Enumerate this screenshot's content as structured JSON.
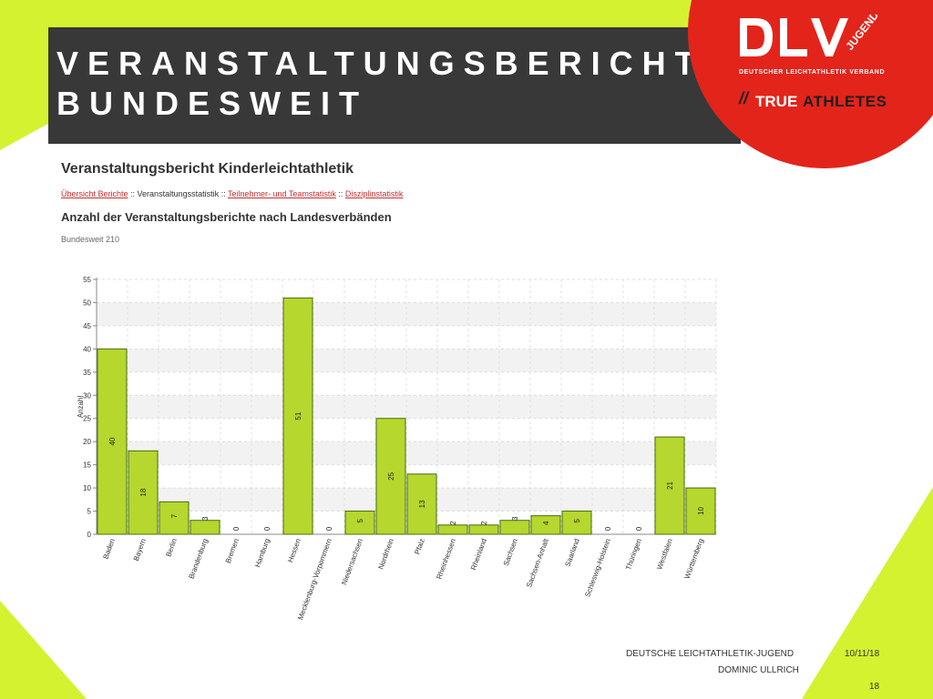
{
  "slide": {
    "title_line1": "VERANSTALTUNGSBERICHTE",
    "title_line2": "BUNDESWEIT"
  },
  "logo": {
    "dlv": "DLV",
    "jugend": "JUGEND",
    "subtitle": "DEUTSCHER LEICHTATHLETIK VERBAND",
    "mark": "//",
    "true_text": "TRUE",
    "athletes_text": "ATHLETES"
  },
  "report": {
    "title": "Veranstaltungsbericht Kinderleichtathletik",
    "nav": [
      {
        "label": "Übersicht Berichte",
        "link": true
      },
      {
        "label": " :: ",
        "link": false
      },
      {
        "label": "Veranstaltungsstatistik",
        "link": false
      },
      {
        "label": " :: ",
        "link": false
      },
      {
        "label": "Teilnehmer- und Teamstatistik",
        "link": true
      },
      {
        "label": " :: ",
        "link": false
      },
      {
        "label": "Disziplinstatistik",
        "link": true
      }
    ],
    "subtitle": "Anzahl der Veranstaltungsberichte nach Landesverbänden",
    "total": "Bundesweit 210"
  },
  "chart_data": {
    "type": "bar",
    "ylabel": "Anzahl",
    "xlabel": "",
    "ylim": [
      0,
      55
    ],
    "ytick_step": 5,
    "grid": true,
    "bar_color": "#b5d72e",
    "bar_stroke": "#4a6d0d",
    "categories": [
      "Baden",
      "Bayern",
      "Berlin",
      "Brandenburg",
      "Bremen",
      "Hamburg",
      "Hessen",
      "Mecklenburg-Vorpommern",
      "Niedersachsen",
      "Nordrhein",
      "Pfalz",
      "Rheinhessen",
      "Rheinland",
      "Sachsen",
      "Sachsen-Anhalt",
      "Saarland",
      "Schleswig-Holstein",
      "Thüringen",
      "Westfalen",
      "Württemberg"
    ],
    "values": [
      40,
      18,
      7,
      3,
      0,
      0,
      51,
      0,
      5,
      25,
      13,
      2,
      2,
      3,
      4,
      5,
      0,
      0,
      21,
      10
    ]
  },
  "footer": {
    "org": "DEUTSCHE LEICHTATHLETIK-JUGEND",
    "name": "DOMINIC ULLRICH",
    "date": "10/11/18",
    "page": "18"
  },
  "colors": {
    "lime": "#d4f230",
    "dark": "#383838",
    "red": "#e3241b"
  }
}
